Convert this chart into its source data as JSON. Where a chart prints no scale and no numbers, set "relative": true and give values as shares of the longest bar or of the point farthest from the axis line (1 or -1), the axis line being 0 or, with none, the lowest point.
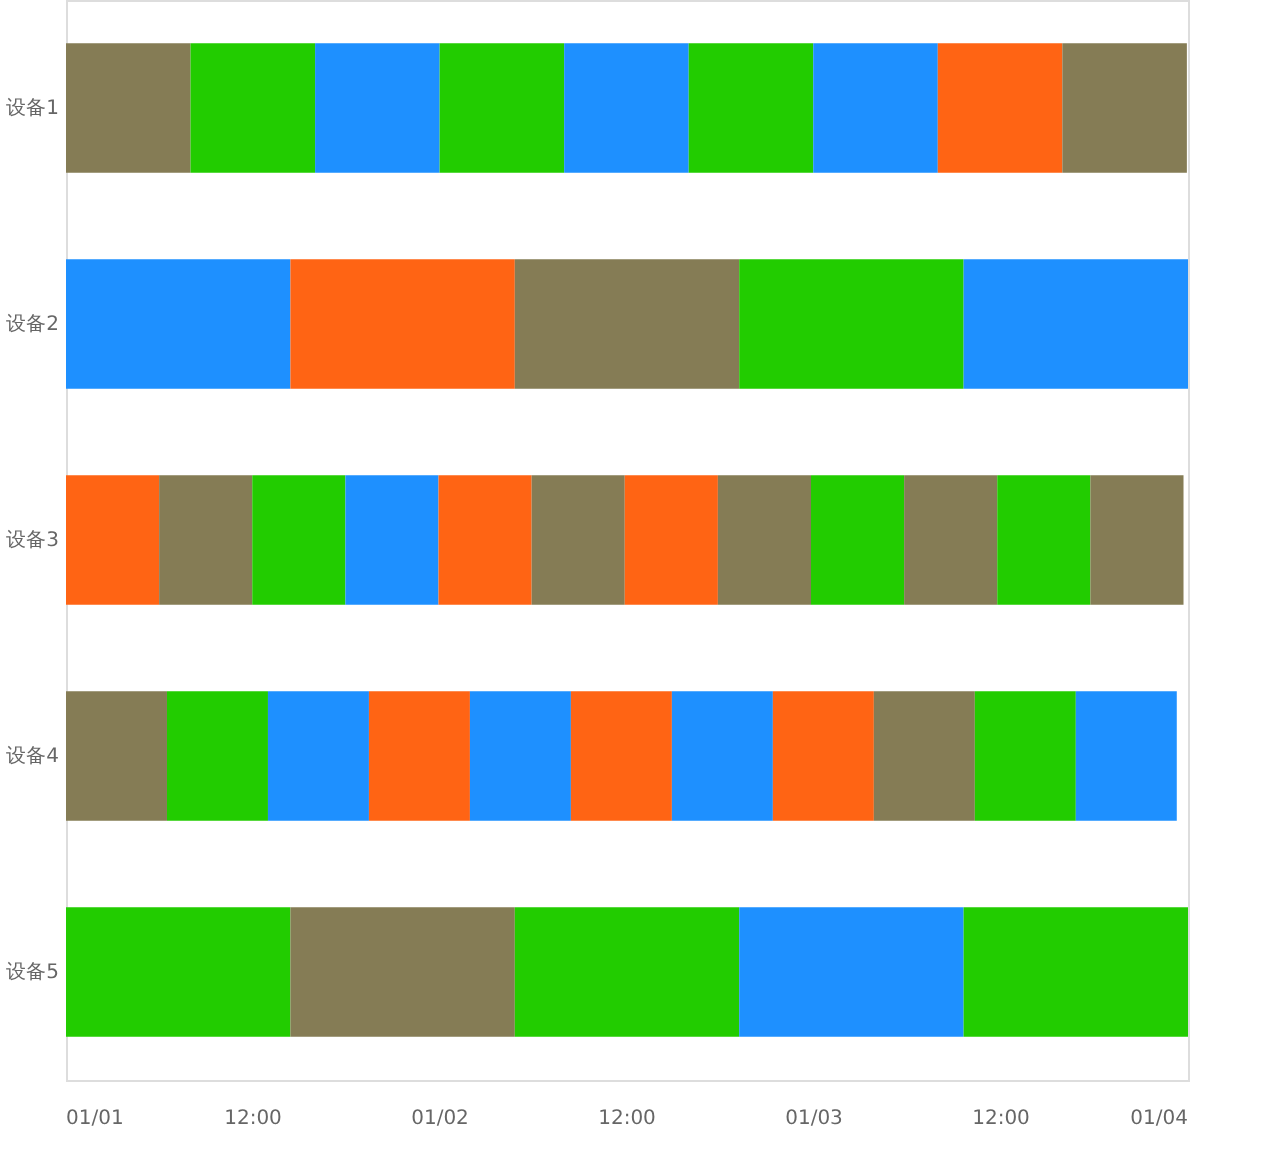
{
  "chart_data": {
    "type": "bar",
    "orientation": "horizontal",
    "stacked": true,
    "relative": true,
    "categories": [
      "设备1",
      "设备2",
      "设备3",
      "设备4",
      "设备5"
    ],
    "annotations": [
      "01/01",
      "12:00",
      "01/02",
      "12:00",
      "01/03",
      "12:00",
      "01/04"
    ],
    "series": [
      {
        "values": [
          0.111,
          0.2,
          0.083,
          0.09,
          0.2
        ],
        "colors": [
          "#857c55",
          "#1e90ff",
          "#ff6414",
          "#857c55",
          "#22cc00"
        ]
      },
      {
        "values": [
          0.111,
          0.2,
          0.083,
          0.09,
          0.2
        ],
        "colors": [
          "#22cc00",
          "#ff6414",
          "#857c55",
          "#22cc00",
          "#857c55"
        ]
      },
      {
        "values": [
          0.111,
          0.2,
          0.083,
          0.09,
          0.2
        ],
        "colors": [
          "#1e90ff",
          "#857c55",
          "#22cc00",
          "#1e90ff",
          "#22cc00"
        ]
      },
      {
        "values": [
          0.111,
          0.2,
          0.083,
          0.09,
          0.2
        ],
        "colors": [
          "#22cc00",
          "#22cc00",
          "#1e90ff",
          "#ff6414",
          "#1e90ff"
        ]
      },
      {
        "values": [
          0.111,
          0.2,
          0.083,
          0.09,
          0.2
        ],
        "colors": [
          "#1e90ff",
          "#1e90ff",
          "#ff6414",
          "#1e90ff",
          "#22cc00"
        ]
      },
      {
        "values": [
          0.111,
          null,
          0.083,
          0.09,
          null
        ],
        "colors": [
          "#22cc00",
          null,
          "#857c55",
          "#ff6414",
          null
        ]
      },
      {
        "values": [
          0.111,
          null,
          0.083,
          0.09,
          null
        ],
        "colors": [
          "#1e90ff",
          null,
          "#ff6414",
          "#1e90ff",
          null
        ]
      },
      {
        "values": [
          0.111,
          null,
          0.083,
          0.09,
          null
        ],
        "colors": [
          "#ff6414",
          null,
          "#857c55",
          "#ff6414",
          null
        ]
      },
      {
        "values": [
          0.111,
          null,
          0.083,
          0.09,
          null
        ],
        "colors": [
          "#857c55",
          null,
          "#22cc00",
          "#857c55",
          null
        ]
      },
      {
        "values": [
          null,
          null,
          0.083,
          0.09,
          null
        ],
        "colors": [
          null,
          null,
          "#857c55",
          "#22cc00",
          null
        ]
      },
      {
        "values": [
          null,
          null,
          0.083,
          0.09,
          null
        ],
        "colors": [
          null,
          null,
          "#22cc00",
          "#1e90ff",
          null
        ]
      },
      {
        "values": [
          null,
          null,
          0.083,
          null,
          null
        ],
        "colors": [
          null,
          null,
          "#857c55",
          null,
          null
        ]
      }
    ]
  }
}
